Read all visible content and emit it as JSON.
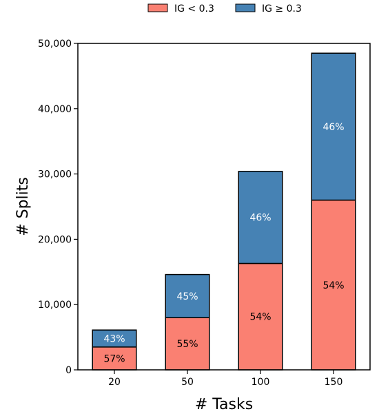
{
  "chart_data": {
    "type": "bar",
    "stacked": true,
    "categories": [
      "20",
      "50",
      "100",
      "150"
    ],
    "series": [
      {
        "name": "IG < 0.3",
        "color": "#fa8072",
        "label_color": "#000000",
        "values": [
          3500,
          8000,
          16300,
          26000
        ],
        "labels": [
          "57%",
          "55%",
          "54%",
          "54%"
        ]
      },
      {
        "name": "IG ≥ 0.3",
        "color": "#4682b4",
        "label_color": "#ffffff",
        "values": [
          2600,
          6600,
          14100,
          22500
        ],
        "labels": [
          "43%",
          "45%",
          "46%",
          "46%"
        ]
      }
    ],
    "xlabel": "# Tasks",
    "ylabel": "# Splits",
    "ylim": [
      0,
      50000
    ],
    "yticks": [
      0,
      10000,
      20000,
      30000,
      40000,
      50000
    ],
    "ytick_labels": [
      "0",
      "10,000",
      "20,000",
      "30,000",
      "40,000",
      "50,000"
    ],
    "grid": false,
    "legend_position": "top-center"
  }
}
